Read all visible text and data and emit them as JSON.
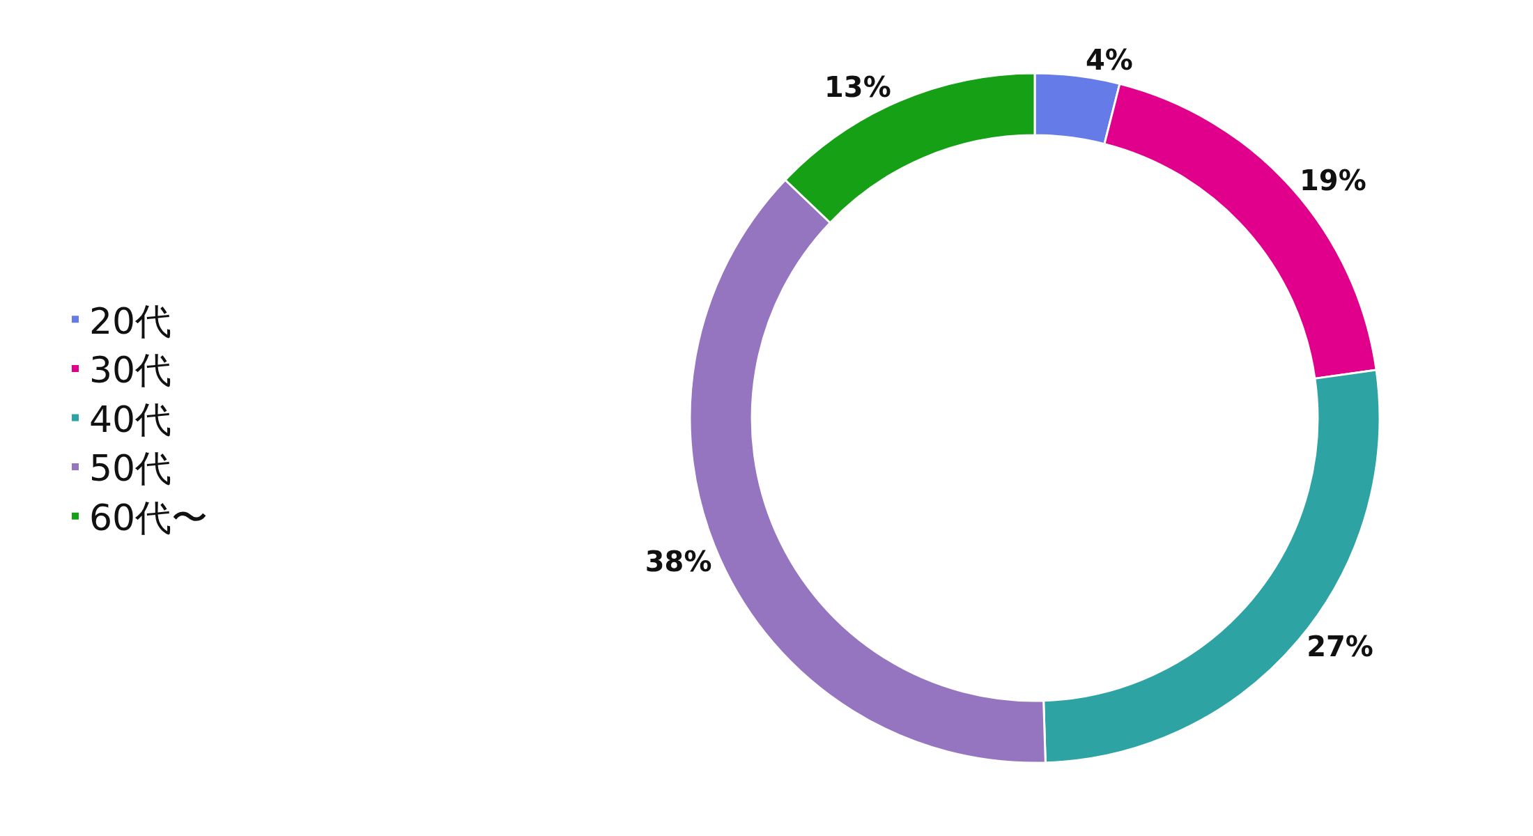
{
  "chart_data": {
    "type": "donut",
    "categories": [
      "20代",
      "30代",
      "40代",
      "50代",
      "60代〜"
    ],
    "values": [
      4,
      19,
      27,
      38,
      13
    ],
    "value_labels": [
      "4%",
      "19%",
      "27%",
      "38%",
      "13%"
    ],
    "colors": [
      "#657be8",
      "#e0008c",
      "#2ea3a3",
      "#9575c0",
      "#15a015"
    ],
    "legend": "left"
  }
}
